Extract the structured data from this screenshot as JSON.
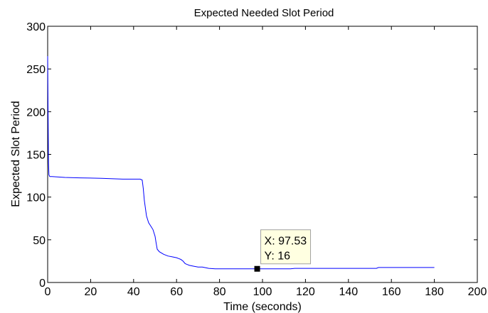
{
  "chart_data": {
    "type": "line",
    "title": "Expected Needed Slot Period",
    "xlabel": "Time (seconds)",
    "ylabel": "Expected Slot Period",
    "xlim": [
      0,
      200
    ],
    "ylim": [
      0,
      300
    ],
    "xticks": [
      "0",
      "20",
      "40",
      "60",
      "80",
      "100",
      "120",
      "140",
      "160",
      "180",
      "200"
    ],
    "yticks": [
      "0",
      "50",
      "100",
      "150",
      "200",
      "250",
      "300"
    ],
    "grid": false,
    "series": [
      {
        "color": "#0000ff",
        "x": [
          0,
          0.2,
          0.4,
          0.6,
          1,
          2,
          5,
          8,
          15,
          25,
          35,
          40,
          43,
          44,
          44.5,
          45,
          46,
          47,
          48,
          49,
          50,
          50.5,
          51,
          52,
          54,
          56,
          58,
          60,
          61,
          62,
          63,
          64,
          65,
          66,
          68,
          70,
          72,
          74,
          75,
          78,
          85,
          90,
          95,
          97.53,
          100,
          110,
          113,
          115,
          120,
          130,
          140,
          150,
          153,
          154,
          160,
          170,
          180
        ],
        "y": [
          265,
          200,
          140,
          126,
          124,
          124,
          123.5,
          123,
          122.5,
          122,
          121,
          121,
          121,
          120,
          110,
          96,
          78,
          70,
          66,
          62,
          54,
          46,
          39,
          36,
          33,
          31,
          30,
          29,
          28,
          27,
          25,
          22,
          21,
          20,
          19,
          18,
          18,
          17,
          16.5,
          16,
          16,
          16,
          16,
          16,
          16,
          16,
          16,
          16.5,
          16.5,
          16.5,
          16.5,
          16.5,
          16.5,
          17.5,
          17.5,
          17.5,
          17.5
        ]
      }
    ],
    "datatip": {
      "x": 97.53,
      "y": 16,
      "x_text": "X: 97.53",
      "y_text": "Y: 16"
    }
  }
}
